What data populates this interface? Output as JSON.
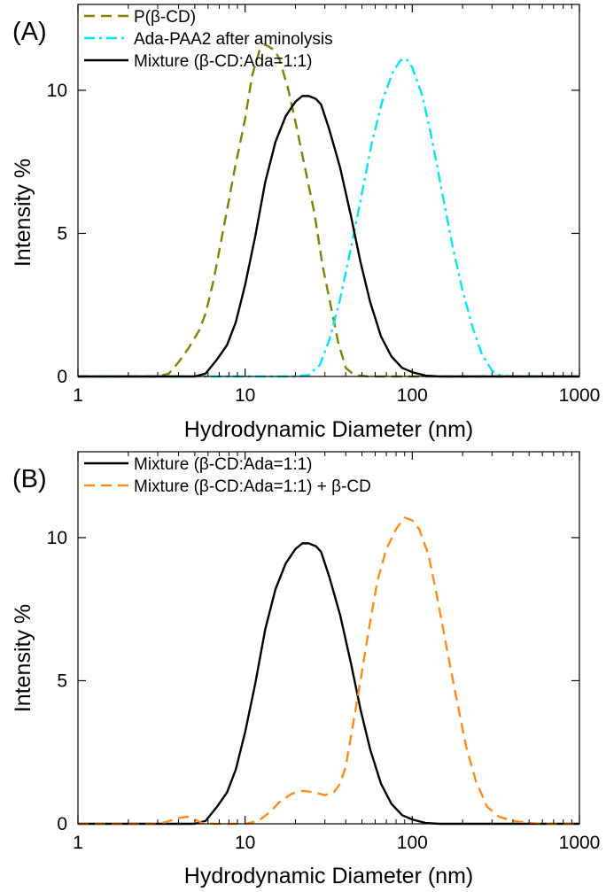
{
  "chart_data": [
    {
      "panel_label": "(A)",
      "type": "line",
      "xlabel": "Hydrodynamic Diameter (nm)",
      "ylabel": "Intensity %",
      "xscale": "log",
      "xlim": [
        1,
        1000
      ],
      "ylim": [
        0,
        13
      ],
      "xticks": [
        {
          "value": 1,
          "label": "1"
        },
        {
          "value": 10,
          "label": "10"
        },
        {
          "value": 100,
          "label": "100"
        },
        {
          "value": 1000,
          "label": "1000"
        }
      ],
      "yticks": [
        {
          "value": 0,
          "label": "0"
        },
        {
          "value": 5,
          "label": "5"
        },
        {
          "value": 10,
          "label": "10"
        }
      ],
      "grid": false,
      "legend_position": "top-left",
      "series": [
        {
          "name": "P(β-CD)",
          "color": "#808000",
          "dash": "dashed",
          "points": [
            [
              1.0,
              0
            ],
            [
              3.0,
              0
            ],
            [
              3.5,
              0.1
            ],
            [
              4.0,
              0.5
            ],
            [
              4.6,
              1.0
            ],
            [
              5.3,
              1.6
            ],
            [
              5.8,
              2.2
            ],
            [
              6.5,
              3.4
            ],
            [
              7.5,
              5.3
            ],
            [
              8.7,
              7.3
            ],
            [
              10.0,
              9.0
            ],
            [
              11.0,
              10.5
            ],
            [
              12.2,
              11.4
            ],
            [
              13.2,
              11.6
            ],
            [
              15.0,
              11.4
            ],
            [
              16.0,
              11.1
            ],
            [
              18.0,
              10.1
            ],
            [
              20.0,
              8.9
            ],
            [
              22.8,
              7.3
            ],
            [
              26.0,
              5.7
            ],
            [
              29.0,
              3.9
            ],
            [
              33.0,
              2.3
            ],
            [
              36.0,
              1.2
            ],
            [
              40.0,
              0.3
            ],
            [
              45.0,
              0.05
            ],
            [
              55.0,
              0
            ],
            [
              1000,
              0
            ]
          ]
        },
        {
          "name": "Ada-PAA2 after aminolysis",
          "color": "#00e5ee",
          "dash": "dashdot",
          "points": [
            [
              1.0,
              0
            ],
            [
              20.0,
              0
            ],
            [
              24.0,
              0.05
            ],
            [
              28.0,
              0.4
            ],
            [
              32.0,
              1.3
            ],
            [
              37.0,
              2.7
            ],
            [
              43.0,
              4.5
            ],
            [
              50.0,
              6.4
            ],
            [
              57.0,
              8.1
            ],
            [
              66.0,
              9.6
            ],
            [
              76.0,
              10.6
            ],
            [
              85.0,
              11.05
            ],
            [
              92.0,
              11.1
            ],
            [
              100.0,
              10.8
            ],
            [
              115.0,
              9.8
            ],
            [
              130.0,
              8.4
            ],
            [
              150.0,
              6.5
            ],
            [
              175.0,
              4.5
            ],
            [
              200.0,
              3.0
            ],
            [
              230.0,
              1.7
            ],
            [
              260.0,
              0.8
            ],
            [
              300.0,
              0.2
            ],
            [
              340.0,
              0.02
            ],
            [
              400.0,
              0
            ],
            [
              1000,
              0
            ]
          ]
        },
        {
          "name": "Mixture (β-CD:Ada=1:1)",
          "color": "#000000",
          "dash": "solid",
          "points": [
            [
              1.0,
              0
            ],
            [
              5.0,
              0
            ],
            [
              5.8,
              0.1
            ],
            [
              6.8,
              0.6
            ],
            [
              7.8,
              1.1
            ],
            [
              8.8,
              1.9
            ],
            [
              10.0,
              3.2
            ],
            [
              11.5,
              4.9
            ],
            [
              13.2,
              6.8
            ],
            [
              15.2,
              8.2
            ],
            [
              17.5,
              9.1
            ],
            [
              20.0,
              9.6
            ],
            [
              22.0,
              9.8
            ],
            [
              24.0,
              9.8
            ],
            [
              26.5,
              9.7
            ],
            [
              28.5,
              9.5
            ],
            [
              32.0,
              8.6
            ],
            [
              37.0,
              7.3
            ],
            [
              43.0,
              5.6
            ],
            [
              49.0,
              4.0
            ],
            [
              56.0,
              2.6
            ],
            [
              65.0,
              1.4
            ],
            [
              75.0,
              0.7
            ],
            [
              87.0,
              0.3
            ],
            [
              100.0,
              0.15
            ],
            [
              120.0,
              0.03
            ],
            [
              145.0,
              0
            ],
            [
              1000,
              0
            ]
          ]
        }
      ]
    },
    {
      "panel_label": "(B)",
      "type": "line",
      "xlabel": "Hydrodynamic Diameter (nm)",
      "ylabel": "Intensity %",
      "xscale": "log",
      "xlim": [
        1,
        1000
      ],
      "ylim": [
        0,
        13
      ],
      "xticks": [
        {
          "value": 1,
          "label": "1"
        },
        {
          "value": 10,
          "label": "10"
        },
        {
          "value": 100,
          "label": "100"
        },
        {
          "value": 1000,
          "label": "1000"
        }
      ],
      "yticks": [
        {
          "value": 0,
          "label": "0"
        },
        {
          "value": 5,
          "label": "5"
        },
        {
          "value": 10,
          "label": "10"
        }
      ],
      "grid": false,
      "legend_position": "top-left",
      "series": [
        {
          "name": "Mixture (β-CD:Ada=1:1)",
          "color": "#000000",
          "dash": "solid",
          "points": [
            [
              1.0,
              0
            ],
            [
              5.0,
              0
            ],
            [
              5.8,
              0.1
            ],
            [
              6.8,
              0.6
            ],
            [
              7.8,
              1.1
            ],
            [
              8.8,
              1.9
            ],
            [
              10.0,
              3.2
            ],
            [
              11.5,
              4.9
            ],
            [
              13.2,
              6.8
            ],
            [
              15.2,
              8.2
            ],
            [
              17.5,
              9.1
            ],
            [
              20.0,
              9.6
            ],
            [
              22.0,
              9.8
            ],
            [
              24.0,
              9.8
            ],
            [
              26.5,
              9.7
            ],
            [
              28.5,
              9.5
            ],
            [
              32.0,
              8.6
            ],
            [
              37.0,
              7.3
            ],
            [
              43.0,
              5.6
            ],
            [
              49.0,
              4.0
            ],
            [
              56.0,
              2.6
            ],
            [
              65.0,
              1.4
            ],
            [
              75.0,
              0.7
            ],
            [
              87.0,
              0.3
            ],
            [
              100.0,
              0.15
            ],
            [
              120.0,
              0.03
            ],
            [
              145.0,
              0
            ],
            [
              1000,
              0
            ]
          ]
        },
        {
          "name": "Mixture (β-CD:Ada=1:1) + β-CD",
          "color": "#ff8c1a",
          "dash": "dashed",
          "points": [
            [
              1.0,
              0
            ],
            [
              2.8,
              0
            ],
            [
              3.3,
              0.05
            ],
            [
              4.0,
              0.2
            ],
            [
              4.5,
              0.25
            ],
            [
              5.0,
              0.15
            ],
            [
              5.5,
              0.03
            ],
            [
              6.5,
              0
            ],
            [
              10.0,
              0
            ],
            [
              12.0,
              0.1
            ],
            [
              14.0,
              0.4
            ],
            [
              16.0,
              0.75
            ],
            [
              19.0,
              1.05
            ],
            [
              22.0,
              1.15
            ],
            [
              26.0,
              1.1
            ],
            [
              30.0,
              1.0
            ],
            [
              34.0,
              1.1
            ],
            [
              37.0,
              1.4
            ],
            [
              40.0,
              2.0
            ],
            [
              44.0,
              3.4
            ],
            [
              49.0,
              5.0
            ],
            [
              55.0,
              6.8
            ],
            [
              62.0,
              8.5
            ],
            [
              70.0,
              9.6
            ],
            [
              80.0,
              10.3
            ],
            [
              90.0,
              10.7
            ],
            [
              100.0,
              10.6
            ],
            [
              110.0,
              10.3
            ],
            [
              125.0,
              9.4
            ],
            [
              140.0,
              8.0
            ],
            [
              160.0,
              6.2
            ],
            [
              185.0,
              4.3
            ],
            [
              210.0,
              2.7
            ],
            [
              240.0,
              1.5
            ],
            [
              280.0,
              0.6
            ],
            [
              330.0,
              0.25
            ],
            [
              400.0,
              0.1
            ],
            [
              500.0,
              0.03
            ],
            [
              600.0,
              0
            ],
            [
              1000,
              0
            ]
          ]
        }
      ]
    }
  ]
}
